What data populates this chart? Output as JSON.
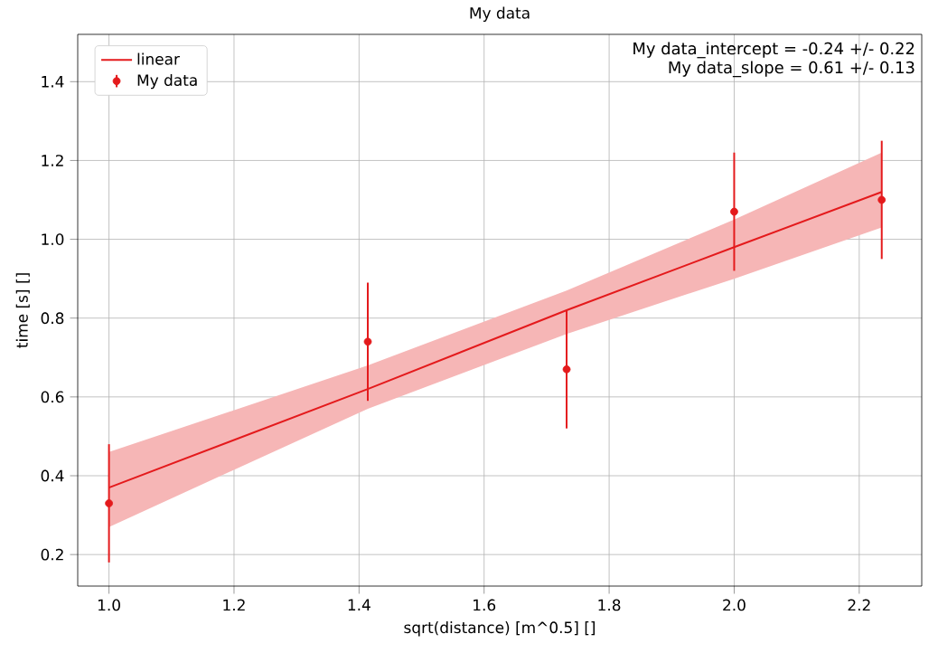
{
  "chart_data": {
    "type": "scatter",
    "title": "My data",
    "xlabel": "sqrt(distance) [m^0.5] []",
    "ylabel": "time [s] []",
    "annotations": [
      "My data_intercept = -0.24 +/- 0.22",
      "My data_slope = 0.61 +/- 0.13"
    ],
    "xlim": [
      0.95,
      2.3
    ],
    "ylim": [
      0.12,
      1.52
    ],
    "xticks": [
      {
        "value": 1.0,
        "label": "1.0"
      },
      {
        "value": 1.2,
        "label": "1.2"
      },
      {
        "value": 1.4,
        "label": "1.4"
      },
      {
        "value": 1.6,
        "label": "1.6"
      },
      {
        "value": 1.8,
        "label": "1.8"
      },
      {
        "value": 2.0,
        "label": "2.0"
      },
      {
        "value": 2.2,
        "label": "2.2"
      }
    ],
    "yticks": [
      0.2,
      0.4,
      0.6,
      0.8,
      {
        "value": 1.0,
        "label": "1.0"
      },
      1.2,
      1.4
    ],
    "grid": true,
    "legend": "top left",
    "series": [
      {
        "name": "linear",
        "type": "line",
        "color": "#e41a1c",
        "x": [
          1.0,
          1.414,
          1.732,
          2.0,
          2.236
        ],
        "values": [
          0.37,
          0.62,
          0.82,
          0.98,
          1.12
        ],
        "lower": [
          0.27,
          0.57,
          0.76,
          0.9,
          1.03
        ],
        "upper": [
          0.46,
          0.68,
          0.87,
          1.05,
          1.22
        ]
      },
      {
        "name": "My data",
        "type": "scatter",
        "marker": "circle",
        "color": "#e41a1c",
        "x": [
          1.0,
          1.414,
          1.732,
          2.0,
          2.236
        ],
        "values": [
          0.33,
          0.74,
          0.67,
          1.07,
          1.1
        ],
        "errors": [
          0.15,
          0.15,
          0.15,
          0.15,
          0.15
        ]
      }
    ]
  }
}
